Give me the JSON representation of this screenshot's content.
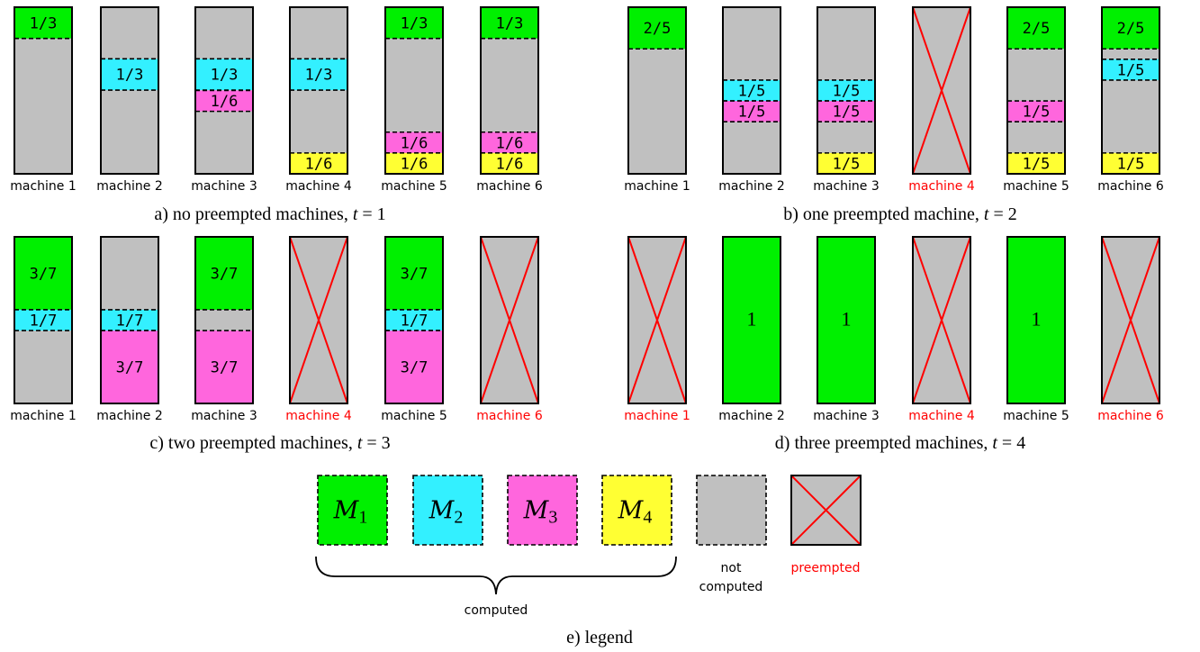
{
  "colors": {
    "M1": "#00f000",
    "M2": "#33f0ff",
    "M3": "#ff66dd",
    "M4": "#ffff33",
    "not_computed": "#c0c0c0",
    "preempted_line": "#ff0000",
    "preempted_text": "#ff0000",
    "border": "#000000"
  },
  "panels": [
    {
      "id": "a",
      "caption_text": "a) no preempted machines, ",
      "caption_var": "t",
      "caption_eq": " = 1",
      "machines": [
        {
          "label": "machine 1",
          "preempted": false,
          "segments": [
            {
              "task": "M1",
              "fraction": 0.1875,
              "text": "1/3"
            }
          ]
        },
        {
          "label": "machine 2",
          "preempted": false,
          "segments": [
            {
              "task": "M2",
              "start": 0.31,
              "fraction": 0.1875,
              "text": "1/3"
            }
          ]
        },
        {
          "label": "machine 3",
          "preempted": false,
          "segments": [
            {
              "task": "M2",
              "start": 0.31,
              "fraction": 0.1875,
              "text": "1/3"
            },
            {
              "task": "M3",
              "start": 0.5,
              "fraction": 0.125,
              "text": "1/6"
            }
          ]
        },
        {
          "label": "machine 4",
          "preempted": false,
          "segments": [
            {
              "task": "M2",
              "start": 0.31,
              "fraction": 0.1875,
              "text": "1/3"
            },
            {
              "task": "M4",
              "start": 0.875,
              "fraction": 0.125,
              "text": "1/6"
            }
          ]
        },
        {
          "label": "machine 5",
          "preempted": false,
          "segments": [
            {
              "task": "M1",
              "start": 0.0,
              "fraction": 0.1875,
              "text": "1/3"
            },
            {
              "task": "M3",
              "start": 0.75,
              "fraction": 0.125,
              "text": "1/6"
            },
            {
              "task": "M4",
              "start": 0.875,
              "fraction": 0.125,
              "text": "1/6"
            }
          ]
        },
        {
          "label": "machine 6",
          "preempted": false,
          "segments": [
            {
              "task": "M1",
              "start": 0.0,
              "fraction": 0.1875,
              "text": "1/3"
            },
            {
              "task": "M3",
              "start": 0.75,
              "fraction": 0.125,
              "text": "1/6"
            },
            {
              "task": "M4",
              "start": 0.875,
              "fraction": 0.125,
              "text": "1/6"
            }
          ]
        }
      ]
    },
    {
      "id": "b",
      "caption_text": "b) one preempted machine, ",
      "caption_var": "t",
      "caption_eq": " = 2",
      "machines": [
        {
          "label": "machine 1",
          "preempted": false,
          "segments": [
            {
              "task": "M1",
              "start": 0.0,
              "fraction": 0.25,
              "text": "2/5"
            }
          ]
        },
        {
          "label": "machine 2",
          "preempted": false,
          "segments": [
            {
              "task": "M2",
              "start": 0.4375,
              "fraction": 0.125,
              "text": "1/5"
            },
            {
              "task": "M3",
              "start": 0.5625,
              "fraction": 0.125,
              "text": "1/5"
            }
          ]
        },
        {
          "label": "machine 3",
          "preempted": false,
          "segments": [
            {
              "task": "M2",
              "start": 0.4375,
              "fraction": 0.125,
              "text": "1/5"
            },
            {
              "task": "M3",
              "start": 0.5625,
              "fraction": 0.125,
              "text": "1/5"
            },
            {
              "task": "M4",
              "start": 0.875,
              "fraction": 0.125,
              "text": "1/5"
            }
          ]
        },
        {
          "label": "machine 4",
          "preempted": true,
          "segments": []
        },
        {
          "label": "machine 5",
          "preempted": false,
          "segments": [
            {
              "task": "M1",
              "start": 0.0,
              "fraction": 0.25,
              "text": "2/5"
            },
            {
              "task": "M3",
              "start": 0.5625,
              "fraction": 0.125,
              "text": "1/5"
            },
            {
              "task": "M4",
              "start": 0.875,
              "fraction": 0.125,
              "text": "1/5"
            }
          ]
        },
        {
          "label": "machine 6",
          "preempted": false,
          "segments": [
            {
              "task": "M1",
              "start": 0.0,
              "fraction": 0.25,
              "text": "2/5"
            },
            {
              "task": "M2",
              "start": 0.3125,
              "fraction": 0.125,
              "text": "1/5"
            },
            {
              "task": "M4",
              "start": 0.875,
              "fraction": 0.125,
              "text": "1/5"
            }
          ]
        }
      ]
    },
    {
      "id": "c",
      "caption_text": "c) two preempted machines, ",
      "caption_var": "t",
      "caption_eq": " = 3",
      "machines": [
        {
          "label": "machine 1",
          "preempted": false,
          "segments": [
            {
              "task": "M1",
              "start": 0.0,
              "fraction": 0.4375,
              "text": "3/7"
            },
            {
              "task": "M2",
              "start": 0.4375,
              "fraction": 0.125,
              "text": "1/7"
            }
          ]
        },
        {
          "label": "machine 2",
          "preempted": false,
          "segments": [
            {
              "task": "M2",
              "start": 0.4375,
              "fraction": 0.125,
              "text": "1/7"
            },
            {
              "task": "M3",
              "start": 0.5625,
              "fraction": 0.4375,
              "text": "3/7"
            }
          ]
        },
        {
          "label": "machine 3",
          "preempted": false,
          "segments": [
            {
              "task": "M1",
              "start": 0.0,
              "fraction": 0.4375,
              "text": "3/7"
            },
            {
              "task": "M3",
              "start": 0.5625,
              "fraction": 0.4375,
              "text": "3/7"
            }
          ]
        },
        {
          "label": "machine 4",
          "preempted": true,
          "segments": []
        },
        {
          "label": "machine 5",
          "preempted": false,
          "segments": [
            {
              "task": "M1",
              "start": 0.0,
              "fraction": 0.4375,
              "text": "3/7"
            },
            {
              "task": "M2",
              "start": 0.4375,
              "fraction": 0.125,
              "text": "1/7"
            },
            {
              "task": "M3",
              "start": 0.5625,
              "fraction": 0.4375,
              "text": "3/7"
            }
          ]
        },
        {
          "label": "machine 6",
          "preempted": true,
          "segments": []
        }
      ]
    },
    {
      "id": "d",
      "caption_text": "d) three preempted machines, ",
      "caption_var": "t",
      "caption_eq": " = 4",
      "machines": [
        {
          "label": "machine 1",
          "preempted": true,
          "segments": []
        },
        {
          "label": "machine 2",
          "preempted": false,
          "segments": [
            {
              "task": "M1",
              "start": 0.0,
              "fraction": 1.0,
              "text": "1"
            }
          ]
        },
        {
          "label": "machine 3",
          "preempted": false,
          "segments": [
            {
              "task": "M1",
              "start": 0.0,
              "fraction": 1.0,
              "text": "1"
            }
          ]
        },
        {
          "label": "machine 4",
          "preempted": true,
          "segments": []
        },
        {
          "label": "machine 5",
          "preempted": false,
          "segments": [
            {
              "task": "M1",
              "start": 0.0,
              "fraction": 1.0,
              "text": "1"
            }
          ]
        },
        {
          "label": "machine 6",
          "preempted": true,
          "segments": []
        }
      ]
    }
  ],
  "legend": {
    "items": [
      {
        "task": "M1",
        "symbol": "M",
        "sub": "1"
      },
      {
        "task": "M2",
        "symbol": "M",
        "sub": "2"
      },
      {
        "task": "M3",
        "symbol": "M",
        "sub": "3"
      },
      {
        "task": "M4",
        "symbol": "M",
        "sub": "4"
      }
    ],
    "computed_label": "computed",
    "not_computed_line1": "not",
    "not_computed_line2": "computed",
    "preempted_label": "preempted",
    "caption": "e) legend"
  }
}
